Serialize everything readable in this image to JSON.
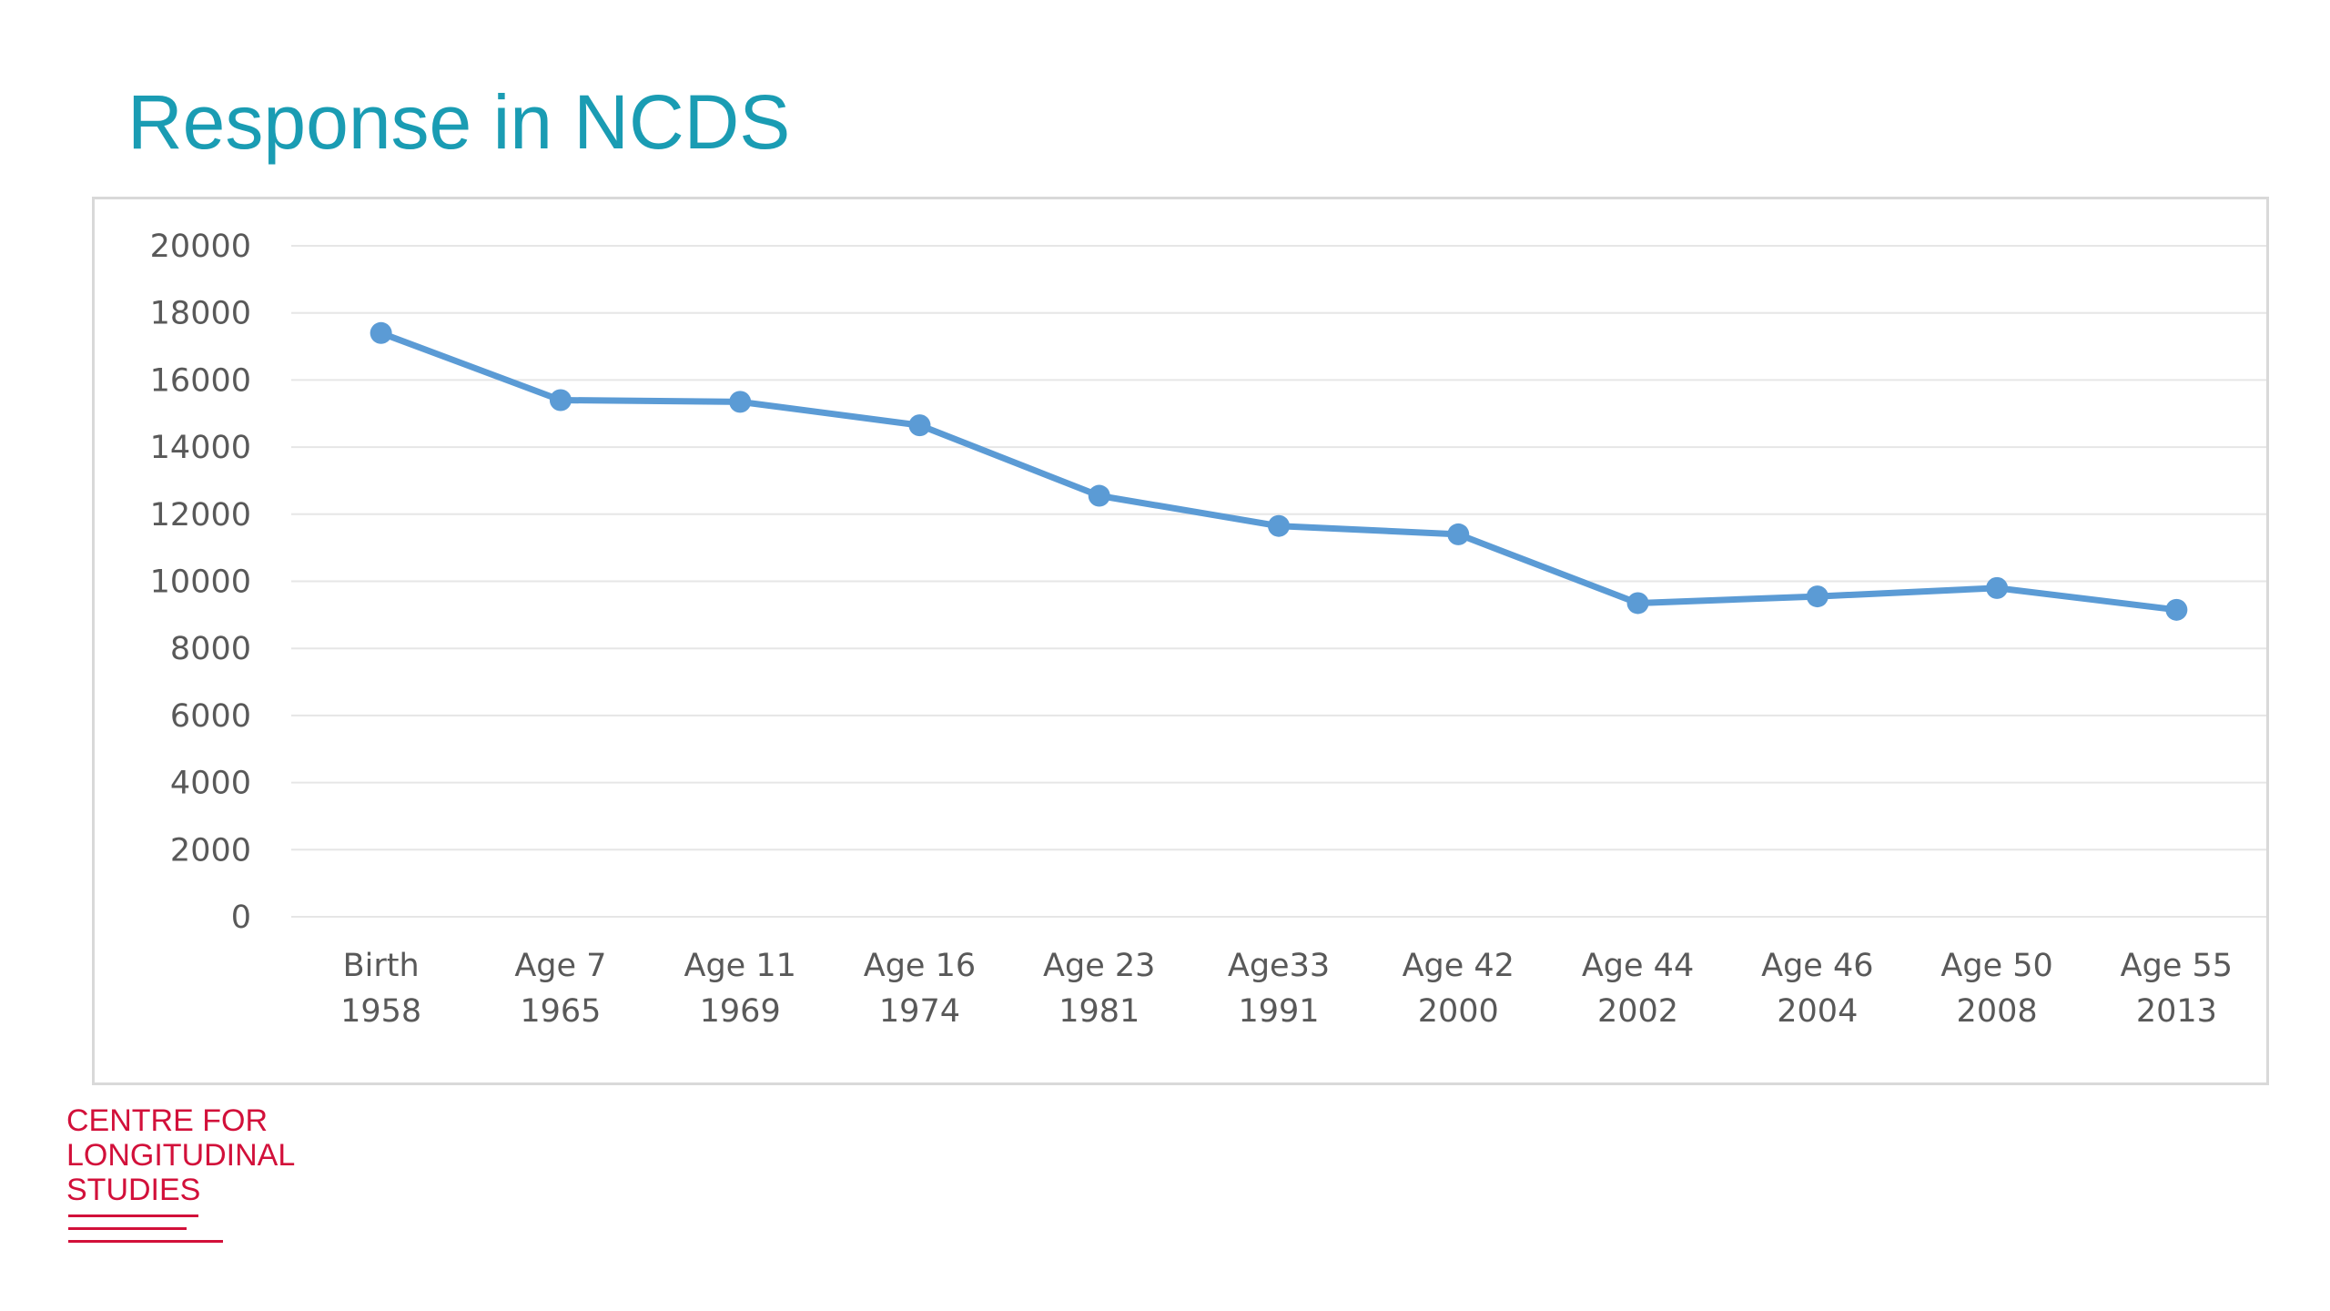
{
  "slide": {
    "title": "Response in NCDS"
  },
  "chart_data": {
    "type": "line",
    "title": "",
    "xlabel": "",
    "ylabel": "",
    "categories": [
      [
        "Birth",
        "1958"
      ],
      [
        "Age 7",
        "1965"
      ],
      [
        "Age 11",
        "1969"
      ],
      [
        "Age 16",
        "1974"
      ],
      [
        "Age 23",
        "1981"
      ],
      [
        "Age33",
        "1991"
      ],
      [
        "Age 42",
        "2000"
      ],
      [
        "Age 44",
        "2002"
      ],
      [
        "Age 46",
        "2004"
      ],
      [
        "Age 50",
        "2008"
      ],
      [
        "Age 55",
        "2013"
      ]
    ],
    "series": [
      {
        "values": [
          17400,
          15400,
          15350,
          14650,
          12550,
          11650,
          11400,
          9350,
          9550,
          9800,
          9150
        ]
      }
    ],
    "ylim": [
      0,
      20000
    ],
    "yticks": [
      "0",
      "2000",
      "4000",
      "6000",
      "8000",
      "10000",
      "12000",
      "14000",
      "16000",
      "18000",
      "20000"
    ],
    "grid": true,
    "legend": "none",
    "colors": {
      "line": "#5b9bd5",
      "grid": "#e6e6e6",
      "tick_text": "#595959"
    }
  },
  "logo": {
    "lines": [
      "CENTRE FOR",
      "LONGITUDINAL",
      "STUDIES"
    ],
    "color": "#d2103a"
  }
}
